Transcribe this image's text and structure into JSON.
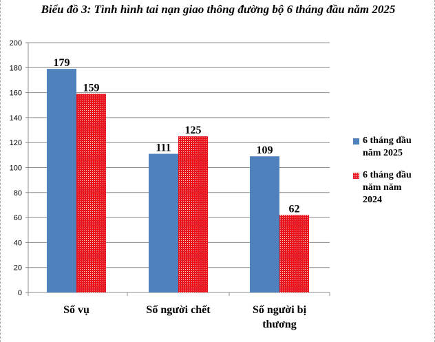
{
  "chart_data": {
    "type": "bar",
    "title": "Biểu đồ 3: Tình hình tai nạn giao thông đường bộ 6 tháng đầu năm 2025",
    "categories": [
      [
        "Số vụ"
      ],
      [
        "Số người chết"
      ],
      [
        "Số người bị",
        "thương"
      ]
    ],
    "series": [
      {
        "name": "6 tháng đầu năm 2025",
        "values": [
          179,
          111,
          109
        ],
        "color": "#4f81bd"
      },
      {
        "name": "6 tháng đầu năm năm 2024",
        "values": [
          159,
          125,
          62
        ],
        "color": "#e8131b"
      }
    ],
    "ylim": [
      0,
      200
    ],
    "yticks": [
      "0",
      "20",
      "40",
      "60",
      "80",
      "100",
      "120",
      "140",
      "160",
      "180",
      "200"
    ],
    "grid": true,
    "legend_position": "right"
  },
  "legend": {
    "items": [
      {
        "lines": [
          "6 tháng đầu",
          "năm 2025"
        ]
      },
      {
        "lines": [
          "6 tháng đầu",
          "năm năm",
          "2024"
        ]
      }
    ]
  }
}
